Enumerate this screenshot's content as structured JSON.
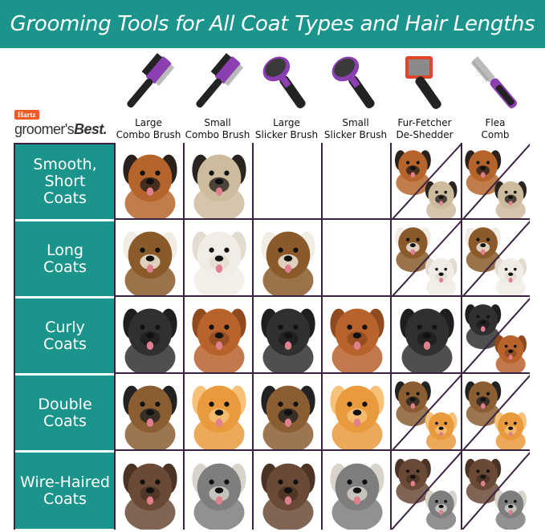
{
  "title": "Grooming Tools for All Coat Types and Hair Lengths",
  "brand": {
    "hartz": "Hartz",
    "name_regular": "groomer's",
    "name_bold": "Best."
  },
  "colors": {
    "teal": "#1b948c",
    "purple": "#8b3fb0",
    "grid": "#3a2341"
  },
  "tools": [
    {
      "label": "Large\nCombo Brush",
      "icon": "combo-brush-icon"
    },
    {
      "label": "Small\nCombo Brush",
      "icon": "combo-brush-icon"
    },
    {
      "label": "Large\nSlicker Brush",
      "icon": "slicker-brush-icon"
    },
    {
      "label": "Small\nSlicker Brush",
      "icon": "slicker-brush-icon"
    },
    {
      "label": "Fur-Fetcher\nDe-Shedder",
      "icon": "deshedder-icon"
    },
    {
      "label": "Flea\nComb",
      "icon": "flea-comb-icon"
    }
  ],
  "coat_types": [
    {
      "label": "Smooth,\nShort\nCoats"
    },
    {
      "label": "Long\nCoats"
    },
    {
      "label": "Curly\nCoats"
    },
    {
      "label": "Double\nCoats"
    },
    {
      "label": "Wire-Haired\nCoats"
    }
  ],
  "dog_colors": {
    "boxer": [
      "#b5652b",
      "#2a211c"
    ],
    "pug": [
      "#cdbb9e",
      "#2a2420"
    ],
    "sheltie": [
      "#8a5a2a",
      "#f2ede4"
    ],
    "maltese": [
      "#f1ede6",
      "#e2dbd0"
    ],
    "black_poodle": [
      "#303030",
      "#1e1e1e"
    ],
    "red_poodle": [
      "#b8622c",
      "#8f4a20"
    ],
    "shepherd": [
      "#8a5e32",
      "#222222"
    ],
    "pomeranian": [
      "#e99a3c",
      "#f6c27a"
    ],
    "wire_brown": [
      "#6a4a36",
      "#4a3224"
    ],
    "schnauzer": [
      "#7e7e7e",
      "#d8d4cc"
    ]
  },
  "matrix": [
    [
      [
        "boxer"
      ],
      [
        "pug"
      ],
      [],
      [],
      [
        "boxer",
        "pug"
      ],
      [
        "boxer",
        "pug"
      ]
    ],
    [
      [
        "sheltie"
      ],
      [
        "maltese"
      ],
      [
        "sheltie"
      ],
      [],
      [
        "sheltie",
        "maltese"
      ],
      [
        "sheltie",
        "maltese"
      ]
    ],
    [
      [
        "black_poodle"
      ],
      [
        "red_poodle"
      ],
      [
        "black_poodle"
      ],
      [
        "red_poodle"
      ],
      [
        "black_poodle"
      ],
      [
        "black_poodle",
        "red_poodle"
      ]
    ],
    [
      [
        "shepherd"
      ],
      [
        "pomeranian"
      ],
      [
        "shepherd"
      ],
      [
        "pomeranian"
      ],
      [
        "shepherd",
        "pomeranian"
      ],
      [
        "shepherd",
        "pomeranian"
      ]
    ],
    [
      [
        "wire_brown"
      ],
      [
        "schnauzer"
      ],
      [
        "wire_brown"
      ],
      [
        "schnauzer"
      ],
      [
        "wire_brown",
        "schnauzer"
      ],
      [
        "wire_brown",
        "schnauzer"
      ]
    ]
  ]
}
